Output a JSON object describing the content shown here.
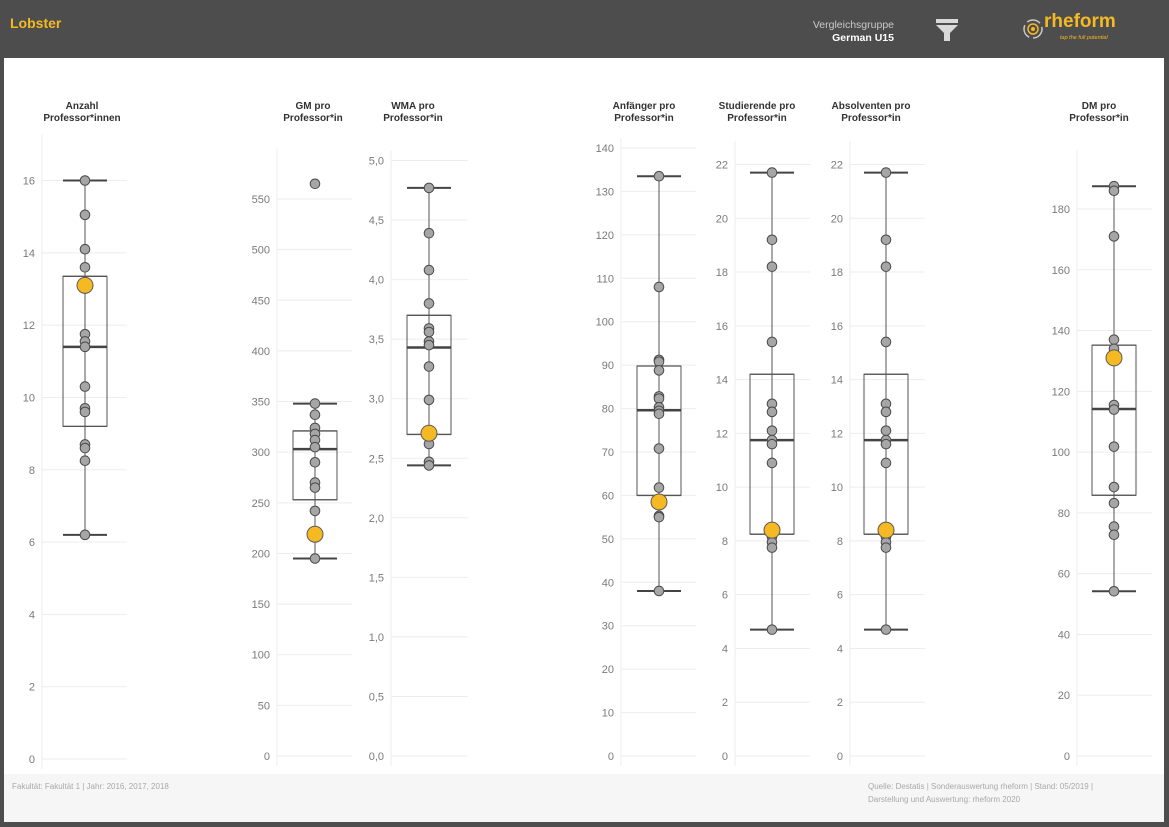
{
  "header": {
    "title": "Lobster",
    "comparison_label": "Vergleichsgruppe",
    "comparison_value": "German U15",
    "filter_icon": "funnel-icon",
    "brand_name": "rheform",
    "brand_tagline": "tap the full potential"
  },
  "footer": {
    "left": "Fakultät: Fakultät 1 | Jahr: 2016, 2017, 2018",
    "right_line1": "Quelle: Destatis | Sonderauswertung rheform | Stand: 05/2019 |",
    "right_line2": "Darstellung und Auswertung: rheform 2020"
  },
  "colors": {
    "header_bg": "#4d4d4d",
    "accent": "#f5b923",
    "point": "#a6a6a6",
    "highlight": "#f5b923"
  },
  "chart_data": [
    {
      "type": "boxplot",
      "title_lines": [
        "Anzahl",
        "Professor*innen"
      ],
      "ylim": [
        0,
        17
      ],
      "ticks": [
        0,
        2,
        4,
        6,
        8,
        10,
        12,
        14,
        16
      ],
      "tick_labels": [
        "0",
        "2",
        "4",
        "6",
        "8",
        "10",
        "12",
        "14",
        "16"
      ],
      "box": {
        "min": 6.2,
        "q1": 9.2,
        "median": 11.4,
        "q3": 13.35,
        "max": 16.0
      },
      "points": [
        16.0,
        15.05,
        14.1,
        13.6,
        11.75,
        11.55,
        11.4,
        10.3,
        9.7,
        9.6,
        8.7,
        8.6,
        8.25,
        6.2
      ],
      "highlight": 13.1
    },
    {
      "type": "boxplot",
      "title_lines": [
        "GM pro",
        "Professor*in"
      ],
      "ylim": [
        0,
        590
      ],
      "ticks": [
        0,
        50,
        100,
        150,
        200,
        250,
        300,
        350,
        400,
        450,
        500,
        550
      ],
      "tick_labels": [
        "0",
        "50",
        "100",
        "150",
        "200",
        "250",
        "300",
        "350",
        "400",
        "450",
        "500",
        "550"
      ],
      "box": {
        "min": 195,
        "q1": 253,
        "median": 303,
        "q3": 321,
        "max": 348
      },
      "points": [
        565,
        348,
        337,
        324,
        318,
        312,
        305,
        290,
        270,
        265,
        242,
        195
      ],
      "highlight": 219
    },
    {
      "type": "boxplot",
      "title_lines": [
        "WMA pro",
        "Professor*in"
      ],
      "ylim": [
        0,
        5.0
      ],
      "ticks": [
        0,
        0.5,
        1.0,
        1.5,
        2.0,
        2.5,
        3.0,
        3.5,
        4.0,
        4.5,
        5.0
      ],
      "tick_labels": [
        "0,0",
        "0,5",
        "1,0",
        "1,5",
        "2,0",
        "2,5",
        "3,0",
        "3,5",
        "4,0",
        "4,5",
        "5,0"
      ],
      "box": {
        "min": 2.44,
        "q1": 2.7,
        "median": 3.43,
        "q3": 3.7,
        "max": 4.77
      },
      "points": [
        4.77,
        4.39,
        4.08,
        3.8,
        3.59,
        3.56,
        3.48,
        3.45,
        3.27,
        2.99,
        2.62,
        2.47,
        2.44
      ],
      "highlight": 2.71
    },
    {
      "type": "boxplot",
      "title_lines": [
        "Anfänger pro",
        "Professor*in"
      ],
      "ylim": [
        0,
        140
      ],
      "ticks": [
        0,
        10,
        20,
        30,
        40,
        50,
        60,
        70,
        80,
        90,
        100,
        110,
        120,
        130,
        140
      ],
      "tick_labels": [
        "0",
        "10",
        "20",
        "30",
        "40",
        "50",
        "60",
        "70",
        "80",
        "90",
        "100",
        "110",
        "120",
        "130",
        "140"
      ],
      "box": {
        "min": 38,
        "q1": 60,
        "median": 79.6,
        "q3": 89.8,
        "max": 133.5
      },
      "points": [
        133.5,
        108,
        91.2,
        90.8,
        88.8,
        82.8,
        82.3,
        80.3,
        79.5,
        78.8,
        70.8,
        61.8,
        55.3,
        55.0,
        38
      ],
      "highlight": 58.5
    },
    {
      "type": "boxplot",
      "title_lines": [
        "Studierende pro",
        "Professor*in"
      ],
      "ylim": [
        0,
        22.5
      ],
      "ticks": [
        0,
        2,
        4,
        6,
        8,
        10,
        12,
        14,
        16,
        18,
        20,
        22
      ],
      "tick_labels": [
        "0",
        "2",
        "4",
        "6",
        "8",
        "10",
        "12",
        "14",
        "16",
        "18",
        "20",
        "22"
      ],
      "box": {
        "min": 4.7,
        "q1": 8.25,
        "median": 11.75,
        "q3": 14.2,
        "max": 21.7
      },
      "points": [
        21.7,
        19.2,
        18.2,
        15.4,
        13.1,
        12.8,
        12.1,
        11.75,
        11.6,
        10.9,
        8.15,
        7.95,
        7.75,
        4.7
      ],
      "highlight": 8.4
    },
    {
      "type": "boxplot",
      "title_lines": [
        "Absolventen pro",
        "Professor*in"
      ],
      "ylim": [
        0,
        22.5
      ],
      "ticks": [
        0,
        2,
        4,
        6,
        8,
        10,
        12,
        14,
        16,
        18,
        20,
        22
      ],
      "tick_labels": [
        "0",
        "2",
        "4",
        "6",
        "8",
        "10",
        "12",
        "14",
        "16",
        "18",
        "20",
        "22"
      ],
      "box": {
        "min": 4.7,
        "q1": 8.25,
        "median": 11.75,
        "q3": 14.2,
        "max": 21.7
      },
      "points": [
        21.7,
        19.2,
        18.2,
        15.4,
        13.1,
        12.8,
        12.1,
        11.75,
        11.6,
        10.9,
        8.15,
        7.95,
        7.75,
        4.7
      ],
      "highlight": 8.4
    },
    {
      "type": "boxplot",
      "title_lines": [
        "DM pro",
        "Professor*in"
      ],
      "ylim": [
        0,
        196
      ],
      "ticks": [
        0,
        20,
        40,
        60,
        80,
        100,
        120,
        140,
        160,
        180
      ],
      "tick_labels": [
        "0",
        "20",
        "40",
        "60",
        "80",
        "100",
        "120",
        "140",
        "160",
        "180"
      ],
      "box": {
        "min": 54.2,
        "q1": 85.8,
        "median": 114.2,
        "q3": 135.2,
        "max": 187.5
      },
      "points": [
        187.5,
        186,
        171,
        137,
        134,
        115.5,
        114,
        101.8,
        88.5,
        83.2,
        75.5,
        72.8,
        54.2
      ],
      "highlight": 131
    }
  ]
}
